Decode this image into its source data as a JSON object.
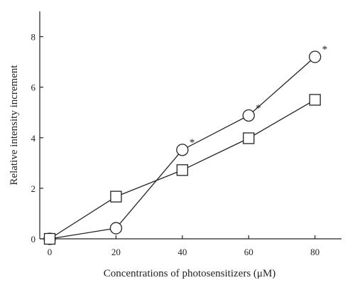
{
  "chart_data": {
    "type": "line",
    "xlabel": "Concentrations of photosensitizers (μM)",
    "ylabel": "Relative intensity increment",
    "x": [
      0,
      20,
      40,
      60,
      80
    ],
    "xticks": [
      "0",
      "20",
      "40",
      "60",
      "80"
    ],
    "yticks": [
      "0",
      "2",
      "4",
      "6",
      "8"
    ],
    "xlim": [
      -3,
      88
    ],
    "ylim": [
      0,
      9
    ],
    "grid": false,
    "series": [
      {
        "marker": "circle",
        "values": [
          0,
          0.42,
          3.52,
          4.88,
          7.2
        ],
        "significance": [
          "",
          "",
          "*",
          "*",
          "*"
        ]
      },
      {
        "marker": "square",
        "values": [
          0,
          1.67,
          2.72,
          3.98,
          5.5
        ]
      }
    ]
  }
}
